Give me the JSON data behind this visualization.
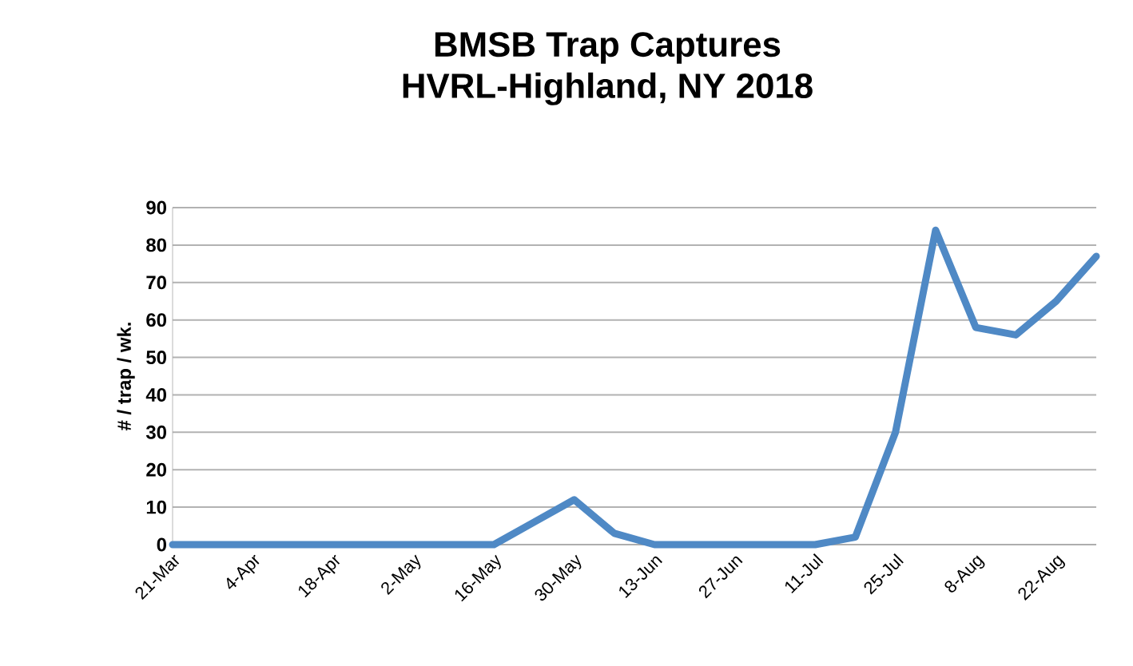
{
  "chart_data": {
    "type": "line",
    "title": "BMSB Trap Captures",
    "subtitle": "HVRL-Highland, NY 2018",
    "ylabel": "# / trap / wk.",
    "categories": [
      "21-Mar",
      null,
      "4-Apr",
      null,
      "18-Apr",
      null,
      "2-May",
      null,
      "16-May",
      null,
      "30-May",
      null,
      "13-Jun",
      null,
      "27-Jun",
      null,
      "11-Jul",
      null,
      "25-Jul",
      null,
      "8-Aug",
      null,
      "22-Aug",
      null
    ],
    "series": [
      {
        "color": "#4f89c5",
        "values": [
          0,
          0,
          0,
          0,
          0,
          0,
          0,
          0,
          0,
          6,
          12,
          3,
          0,
          0,
          0,
          0,
          0,
          2,
          30,
          84,
          58,
          56,
          65,
          77
        ]
      }
    ],
    "ylim": [
      0,
      90
    ],
    "yticks": [
      0,
      10,
      20,
      30,
      40,
      50,
      60,
      70,
      80,
      90
    ],
    "grid": "y",
    "marker": "none",
    "line_style": "solid"
  }
}
